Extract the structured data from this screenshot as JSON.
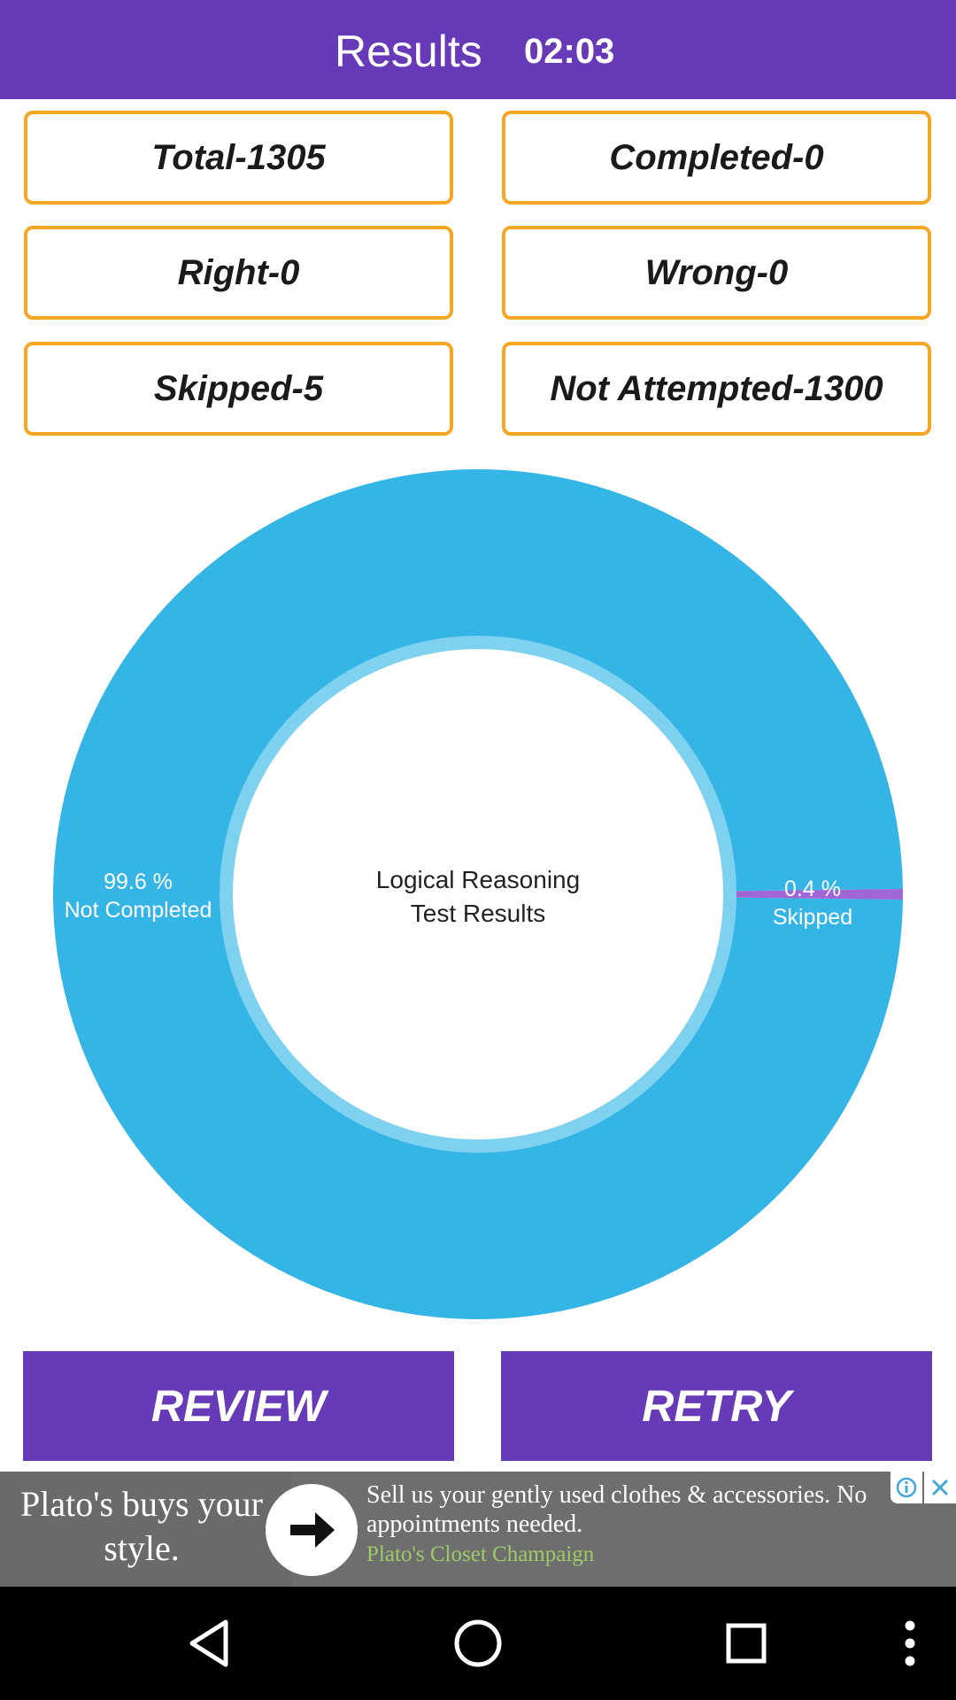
{
  "header": {
    "title": "Results",
    "timer": "02:03"
  },
  "stats": {
    "total": "Total-1305",
    "completed": "Completed-0",
    "right": "Right-0",
    "wrong": "Wrong-0",
    "skipped": "Skipped-5",
    "not_attempted": "Not Attempted-1300"
  },
  "chart_data": {
    "type": "pie",
    "variant": "donut",
    "title": "Logical Reasoning\nTest Results",
    "slices": [
      {
        "label": "Not Completed",
        "percent_label": "99.6 %",
        "value": 99.6,
        "color": "#35b5e5"
      },
      {
        "label": "Skipped",
        "percent_label": "0.4 %",
        "value": 0.4,
        "color": "#a066d3"
      }
    ]
  },
  "buttons": {
    "review": "REVIEW",
    "retry": "RETRY"
  },
  "ad": {
    "headline": "Plato's buys your style.",
    "body": "Sell us your gently used clothes & accessories. No appointments needed.",
    "source": "Plato's Closet Champaign",
    "info_icon": "ad-choices-icon",
    "close_icon": "close-icon"
  },
  "navbar": {
    "icons": [
      "back-icon",
      "home-icon",
      "recents-icon",
      "more-icon"
    ]
  },
  "colors": {
    "primary": "#673ab7",
    "accent_border": "#f5a623",
    "chart_blue": "#35b5e5",
    "chart_purple": "#a066d3"
  }
}
